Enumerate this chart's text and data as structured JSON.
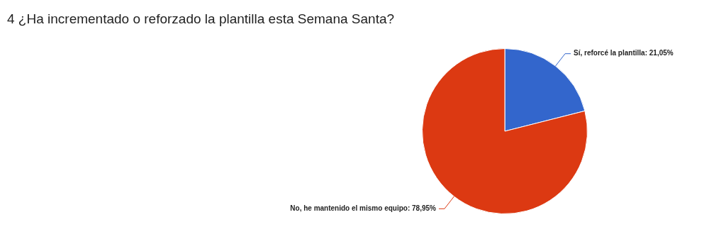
{
  "chart_data": {
    "type": "pie",
    "title": "4 ¿Ha incrementado o reforzado la plantilla esta Semana Santa?",
    "categories": [
      "Sí, reforcé la plantilla",
      "No, he mantenido el mismo equipo"
    ],
    "values": [
      21.05,
      78.95
    ],
    "value_labels": [
      "21,05%",
      "78,95%"
    ],
    "colors": [
      "#3366cc",
      "#dc3912"
    ],
    "legend": false
  }
}
